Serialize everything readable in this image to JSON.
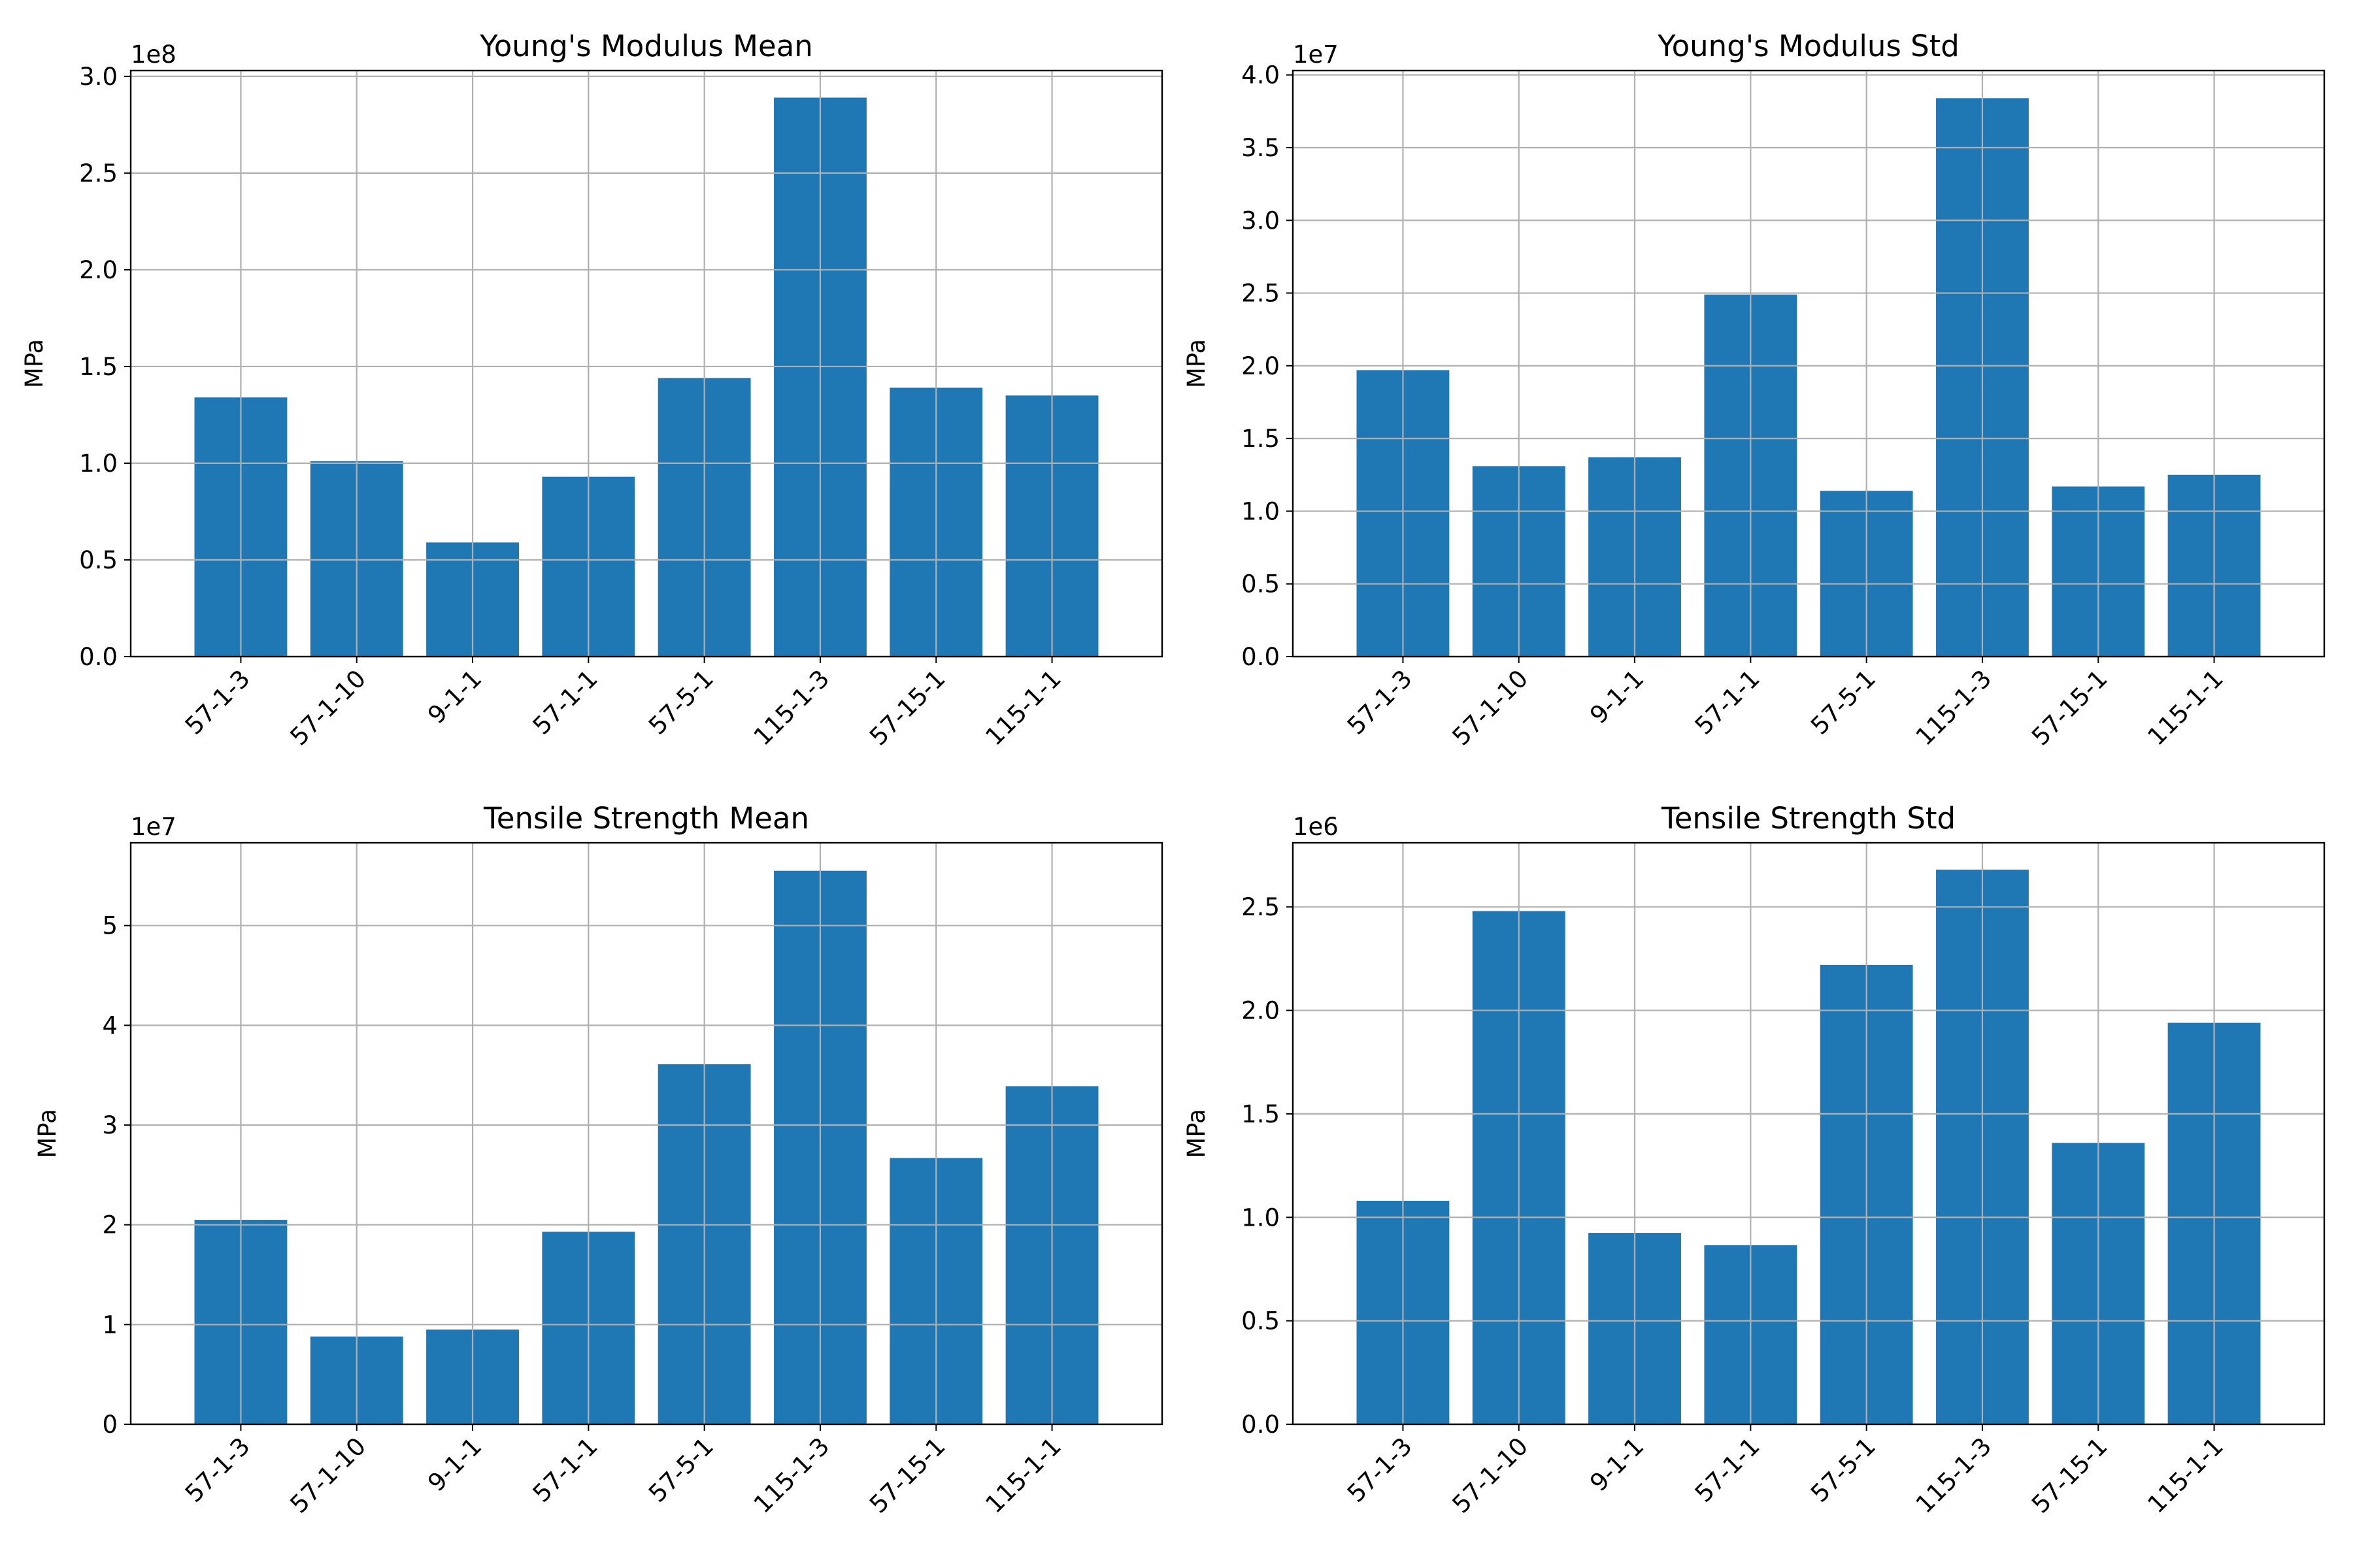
{
  "chart_data": [
    {
      "type": "bar",
      "title": "Young's Modulus Mean",
      "ylabel": "MPa",
      "offset_text": "1e8",
      "scale": 100000000,
      "categories": [
        "57-1-3",
        "57-1-10",
        "9-1-1",
        "57-1-1",
        "57-5-1",
        "115-1-3",
        "57-15-1",
        "115-1-1"
      ],
      "values": [
        134000000,
        101000000,
        59000000,
        93000000,
        144000000,
        289000000,
        139000000,
        135000000
      ],
      "ylim": [
        0,
        303000000
      ],
      "yticks": [
        0,
        50000000,
        100000000,
        150000000,
        200000000,
        250000000,
        300000000
      ],
      "ytick_labels": [
        "0.0",
        "0.5",
        "1.0",
        "1.5",
        "2.0",
        "2.5",
        "3.0"
      ],
      "grid": true
    },
    {
      "type": "bar",
      "title": "Young's Modulus Std",
      "ylabel": "MPa",
      "offset_text": "1e7",
      "scale": 10000000,
      "categories": [
        "57-1-3",
        "57-1-10",
        "9-1-1",
        "57-1-1",
        "57-5-1",
        "115-1-3",
        "57-15-1",
        "115-1-1"
      ],
      "values": [
        19700000,
        13100000,
        13700000,
        24900000,
        11400000,
        38400000,
        11700000,
        12500000
      ],
      "ylim": [
        0,
        40300000
      ],
      "yticks": [
        0,
        5000000,
        10000000,
        15000000,
        20000000,
        25000000,
        30000000,
        35000000,
        40000000
      ],
      "ytick_labels": [
        "0.0",
        "0.5",
        "1.0",
        "1.5",
        "2.0",
        "2.5",
        "3.0",
        "3.5",
        "4.0"
      ],
      "grid": true
    },
    {
      "type": "bar",
      "title": "Tensile Strength Mean",
      "ylabel": "MPa",
      "offset_text": "1e7",
      "scale": 10000000,
      "categories": [
        "57-1-3",
        "57-1-10",
        "9-1-1",
        "57-1-1",
        "57-5-1",
        "115-1-3",
        "57-15-1",
        "115-1-1"
      ],
      "values": [
        20500000,
        8800000,
        9500000,
        19300000,
        36100000,
        55500000,
        26700000,
        33900000
      ],
      "ylim": [
        0,
        58300000
      ],
      "yticks": [
        0,
        10000000,
        20000000,
        30000000,
        40000000,
        50000000
      ],
      "ytick_labels": [
        "0",
        "1",
        "2",
        "3",
        "4",
        "5"
      ],
      "grid": true
    },
    {
      "type": "bar",
      "title": "Tensile Strength Std",
      "ylabel": "MPa",
      "offset_text": "1e6",
      "scale": 1000000,
      "categories": [
        "57-1-3",
        "57-1-10",
        "9-1-1",
        "57-1-1",
        "57-5-1",
        "115-1-3",
        "57-15-1",
        "115-1-1"
      ],
      "values": [
        1080000,
        2480000,
        925000,
        865000,
        2220000,
        2680000,
        1360000,
        1940000
      ],
      "ylim": [
        0,
        2810000
      ],
      "yticks": [
        0,
        500000,
        1000000,
        1500000,
        2000000,
        2500000
      ],
      "ytick_labels": [
        "0.0",
        "0.5",
        "1.0",
        "1.5",
        "2.0",
        "2.5"
      ],
      "grid": true
    }
  ],
  "colors": {
    "bar": "#1f77b4",
    "grid": "#b0b0b0",
    "axis": "#000000",
    "background": "#ffffff"
  }
}
